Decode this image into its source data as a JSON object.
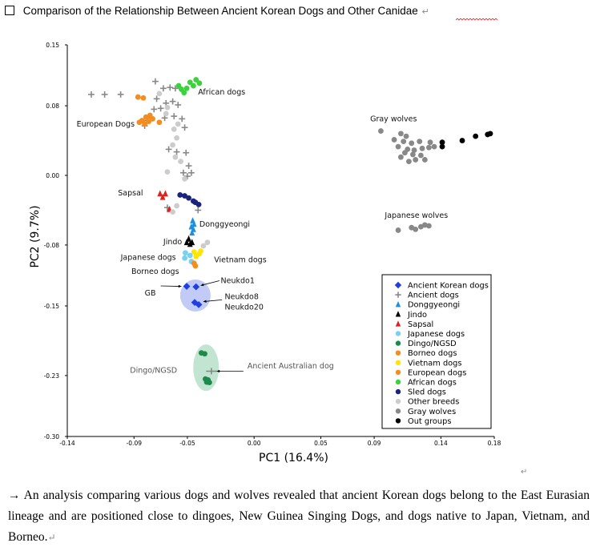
{
  "heading": {
    "text": "Comparison of the Relationship Between Ancient Korean Dogs and Other Canidae",
    "pilcrow": "↵"
  },
  "caption": {
    "text": "→ An analysis comparing various dogs and wolves revealed that ancient Korean dogs belong to the East Eurasian lineage and are positioned close to dingoes, New Guinea Singing Dogs, and dogs native to Japan, Vietnam, and Borneo.",
    "pilcrow": "↵"
  },
  "stray_mark": "↵",
  "chart_data": {
    "type": "scatter",
    "xlabel": "PC1 (16.4%)",
    "ylabel": "PC2 (9.7%)",
    "xlim": [
      -0.14,
      0.18
    ],
    "ylim": [
      -0.3,
      0.15
    ],
    "xticks": [
      "-0.14",
      "-0.09",
      "-0.05",
      "0.00",
      "0.05",
      "0.09",
      "0.14",
      "0.18"
    ],
    "xtick_values": [
      -0.14,
      -0.09,
      -0.05,
      0.0,
      0.05,
      0.09,
      0.14,
      0.18
    ],
    "yticks": [
      "0.15",
      "0.08",
      "0.00",
      "-0.08",
      "-0.15",
      "-0.23",
      "-0.30"
    ],
    "ytick_values": [
      0.15,
      0.08,
      0.0,
      -0.08,
      -0.15,
      -0.23,
      -0.3
    ],
    "legend_position": "bottom-right",
    "series": [
      {
        "name": "Ancient Korean dogs",
        "marker": "diamond",
        "color": "#1f3fe0",
        "points": [
          [
            -0.0505,
            -0.1275
          ],
          [
            -0.0435,
            -0.128
          ],
          [
            -0.0415,
            -0.1485
          ],
          [
            -0.0445,
            -0.146
          ]
        ]
      },
      {
        "name": "Ancient dogs",
        "marker": "plus",
        "color": "#888888",
        "points": [
          [
            -0.122,
            0.093
          ],
          [
            -0.112,
            0.093
          ],
          [
            -0.1,
            0.093
          ],
          [
            -0.074,
            0.108
          ],
          [
            -0.068,
            0.1
          ],
          [
            -0.063,
            0.101
          ],
          [
            -0.059,
            0.1
          ],
          [
            -0.073,
            0.088
          ],
          [
            -0.066,
            0.083
          ],
          [
            -0.061,
            0.085
          ],
          [
            -0.057,
            0.081
          ],
          [
            -0.07,
            0.077
          ],
          [
            -0.075,
            0.076
          ],
          [
            -0.077,
            0.066
          ],
          [
            -0.08,
            0.063
          ],
          [
            -0.082,
            0.057
          ],
          [
            -0.067,
            0.066
          ],
          [
            -0.06,
            0.068
          ],
          [
            -0.054,
            0.065
          ],
          [
            -0.052,
            0.055
          ],
          [
            -0.064,
            0.03
          ],
          [
            -0.058,
            0.027
          ],
          [
            -0.051,
            0.026
          ],
          [
            -0.049,
            0.011
          ],
          [
            -0.053,
            0.003
          ],
          [
            -0.05,
            -0.001
          ],
          [
            -0.047,
            0.003
          ],
          [
            -0.065,
            -0.037
          ],
          [
            -0.042,
            -0.04
          ]
        ]
      },
      {
        "name": "Donggyeongi",
        "marker": "triangle",
        "color": "#1e8fe0",
        "points": [
          [
            -0.046,
            -0.052
          ],
          [
            -0.045,
            -0.056
          ],
          [
            -0.047,
            -0.059
          ],
          [
            -0.0455,
            -0.062
          ],
          [
            -0.0465,
            -0.066
          ]
        ]
      },
      {
        "name": "Jindo",
        "marker": "triangle",
        "color": "#000000",
        "points": [
          [
            -0.049,
            -0.073
          ],
          [
            -0.0465,
            -0.077
          ],
          [
            -0.0505,
            -0.077
          ],
          [
            -0.048,
            -0.079
          ]
        ]
      },
      {
        "name": "Sapsal",
        "marker": "triangle",
        "color": "#e0201c",
        "points": [
          [
            -0.0705,
            -0.021
          ],
          [
            -0.0665,
            -0.021
          ],
          [
            -0.0685,
            -0.025
          ],
          [
            -0.0635,
            -0.039
          ]
        ]
      },
      {
        "name": "Japanese dogs",
        "marker": "circle",
        "color": "#7ad0f0",
        "points": [
          [
            -0.0515,
            -0.089
          ],
          [
            -0.048,
            -0.092
          ],
          [
            -0.052,
            -0.095
          ],
          [
            -0.047,
            -0.099
          ]
        ]
      },
      {
        "name": "Dingo/NGSD",
        "marker": "circle",
        "color": "#1e8a4a",
        "points": [
          [
            -0.0395,
            -0.204
          ],
          [
            -0.037,
            -0.205
          ],
          [
            -0.0365,
            -0.234
          ],
          [
            -0.0345,
            -0.235
          ],
          [
            -0.0355,
            -0.2375
          ],
          [
            -0.0335,
            -0.238
          ]
        ]
      },
      {
        "name": "Borneo dogs",
        "marker": "circle",
        "color": "#f58c1e",
        "points": [
          [
            -0.045,
            -0.101
          ],
          [
            -0.044,
            -0.104
          ]
        ]
      },
      {
        "name": "Vietnam dogs",
        "marker": "circle",
        "color": "#ffe600",
        "points": [
          [
            -0.045,
            -0.088
          ],
          [
            -0.041,
            -0.09
          ],
          [
            -0.0435,
            -0.093
          ],
          [
            -0.04,
            -0.087
          ]
        ]
      },
      {
        "name": "European dogs",
        "marker": "circle",
        "color": "#f58c1e",
        "points": [
          [
            -0.083,
            0.089
          ],
          [
            -0.078,
            0.069
          ],
          [
            -0.081,
            0.067
          ],
          [
            -0.084,
            0.063
          ],
          [
            -0.079,
            0.062
          ],
          [
            -0.076,
            0.065
          ],
          [
            -0.082,
            0.059
          ],
          [
            -0.071,
            0.061
          ],
          [
            -0.086,
            0.061
          ],
          [
            -0.087,
            0.09
          ]
        ]
      },
      {
        "name": "African dogs",
        "marker": "circle",
        "color": "#3cd23c",
        "points": [
          [
            -0.048,
            0.107
          ],
          [
            -0.0435,
            0.11
          ],
          [
            -0.041,
            0.106
          ],
          [
            -0.0455,
            0.103
          ],
          [
            -0.0505,
            0.1
          ],
          [
            -0.0545,
            0.099
          ],
          [
            -0.0525,
            0.095
          ],
          [
            -0.0565,
            0.103
          ]
        ]
      },
      {
        "name": "Sled dogs",
        "marker": "circle",
        "color": "#1a237e",
        "points": [
          [
            -0.0555,
            -0.0225
          ],
          [
            -0.052,
            -0.0235
          ],
          [
            -0.049,
            -0.026
          ],
          [
            -0.0455,
            -0.0295
          ],
          [
            -0.0415,
            -0.0335
          ],
          [
            -0.044,
            -0.031
          ]
        ]
      },
      {
        "name": "Other breeds",
        "marker": "circle",
        "color": "#cccccc",
        "points": [
          [
            -0.065,
            0.078
          ],
          [
            -0.057,
            0.059
          ],
          [
            -0.06,
            0.053
          ],
          [
            -0.058,
            0.043
          ],
          [
            -0.061,
            0.035
          ],
          [
            -0.059,
            0.021
          ],
          [
            -0.055,
            0.016
          ],
          [
            -0.065,
            0.004
          ],
          [
            -0.052,
            -0.004
          ],
          [
            -0.058,
            -0.035
          ],
          [
            -0.035,
            -0.077
          ],
          [
            -0.038,
            -0.081
          ],
          [
            -0.061,
            -0.042
          ],
          [
            -0.066,
            0.071
          ],
          [
            -0.071,
            0.094
          ]
        ]
      },
      {
        "name": "Gray wolves",
        "marker": "circle",
        "color": "#888888",
        "points": [
          [
            0.095,
            0.051
          ],
          [
            0.11,
            0.048
          ],
          [
            0.114,
            0.045
          ],
          [
            0.105,
            0.041
          ],
          [
            0.112,
            0.039
          ],
          [
            0.118,
            0.037
          ],
          [
            0.124,
            0.039
          ],
          [
            0.132,
            0.038
          ],
          [
            0.108,
            0.033
          ],
          [
            0.115,
            0.03
          ],
          [
            0.12,
            0.029
          ],
          [
            0.126,
            0.031
          ],
          [
            0.131,
            0.032
          ],
          [
            0.135,
            0.033
          ],
          [
            0.113,
            0.026
          ],
          [
            0.119,
            0.024
          ],
          [
            0.125,
            0.023
          ],
          [
            0.11,
            0.021
          ],
          [
            0.121,
            0.018
          ],
          [
            0.128,
            0.018
          ],
          [
            0.116,
            0.016
          ],
          [
            0.108,
            -0.063
          ],
          [
            0.121,
            -0.062
          ],
          [
            0.118,
            -0.06
          ],
          [
            0.125,
            -0.059
          ],
          [
            0.131,
            -0.058
          ],
          [
            0.128,
            -0.057
          ]
        ]
      },
      {
        "name": "Out groups",
        "marker": "circle",
        "color": "#000000",
        "points": [
          [
            0.141,
            0.033
          ],
          [
            0.141,
            0.038
          ],
          [
            0.156,
            0.04
          ],
          [
            0.166,
            0.045
          ],
          [
            0.175,
            0.047
          ],
          [
            0.177,
            0.048
          ]
        ]
      }
    ],
    "annotations": [
      {
        "text": "African dogs",
        "x": -0.042,
        "y": 0.093
      },
      {
        "text": "European Dogs",
        "x": -0.133,
        "y": 0.056
      },
      {
        "text": "Gray wolves",
        "x": 0.087,
        "y": 0.062
      },
      {
        "text": "Sapsal",
        "x": -0.102,
        "y": -0.023
      },
      {
        "text": "Donggyeongi",
        "x": -0.041,
        "y": -0.059
      },
      {
        "text": "Japanese wolves",
        "x": 0.098,
        "y": -0.049
      },
      {
        "text": "Jindo",
        "x": -0.068,
        "y": -0.079
      },
      {
        "text": "Japanese dogs",
        "x": -0.1,
        "y": -0.097
      },
      {
        "text": "Vietnam dogs",
        "x": -0.03,
        "y": -0.1
      },
      {
        "text": "Borneo dogs",
        "x": -0.092,
        "y": -0.113
      },
      {
        "text": "Neukdo1",
        "x": -0.025,
        "y": -0.124
      },
      {
        "text": "GB",
        "x": -0.082,
        "y": -0.138
      },
      {
        "text": "Neukdo8",
        "x": -0.022,
        "y": -0.142
      },
      {
        "text": "Neukdo20",
        "x": -0.022,
        "y": -0.154
      },
      {
        "text": "Dingo/NGSD",
        "x": -0.093,
        "y": -0.227
      },
      {
        "text": "Ancient Australian dog",
        "x": -0.005,
        "y": -0.222
      }
    ]
  }
}
